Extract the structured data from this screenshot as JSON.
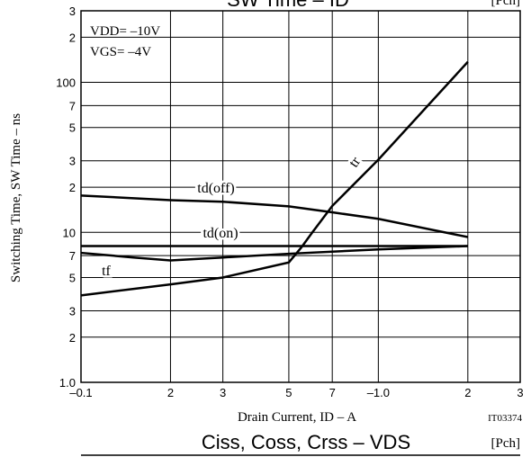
{
  "chart_data": {
    "type": "line",
    "title": "SW Time – ID",
    "title_note": "[Pch]",
    "xlabel": "Drain Current, ID – A",
    "ylabel": "Switching Time, SW Time – ns",
    "figure_id": "IT03374",
    "annotations": [
      "VDD= –10V",
      "VGS= –4V"
    ],
    "next_title": "Ciss, Coss, Crss – VDS",
    "next_title_note": "[Pch]",
    "xscale": "log",
    "yscale": "log",
    "grid": true,
    "xlim": [
      0.1,
      3
    ],
    "ylim": [
      1,
      300
    ],
    "xticks": [
      {
        "value": 0.1,
        "label": "–0.1"
      },
      {
        "value": 0.2,
        "label": "2"
      },
      {
        "value": 0.3,
        "label": "3"
      },
      {
        "value": 0.5,
        "label": "5"
      },
      {
        "value": 0.7,
        "label": "7"
      },
      {
        "value": 1.0,
        "label": "–1.0"
      },
      2,
      3
    ],
    "yticks": [
      {
        "value": 1,
        "label": "1.0"
      },
      2,
      3,
      5,
      7,
      10,
      {
        "value": 20,
        "label": "2"
      },
      {
        "value": 30,
        "label": "3"
      },
      {
        "value": 50,
        "label": "5"
      },
      {
        "value": 70,
        "label": "7"
      },
      100,
      {
        "value": 200,
        "label": "2"
      },
      {
        "value": 300,
        "label": "3"
      }
    ],
    "series": [
      {
        "name": "tr",
        "color": "#000000",
        "x": [
          0.1,
          0.2,
          0.3,
          0.5,
          0.55,
          0.6,
          0.7,
          1.0,
          2.0
        ],
        "values": [
          3.8,
          4.5,
          5.0,
          6.3,
          7.9,
          10,
          15,
          30.5,
          137
        ]
      },
      {
        "name": "td(off)",
        "color": "#000000",
        "x": [
          0.1,
          0.2,
          0.3,
          0.5,
          0.7,
          1.0,
          2.0
        ],
        "values": [
          17.6,
          16.4,
          16,
          14.9,
          13.6,
          12.3,
          9.3
        ]
      },
      {
        "name": "td(on)",
        "color": "#000000",
        "x": [
          0.1,
          2.0
        ],
        "values": [
          8.1,
          8.1
        ]
      },
      {
        "name": "tf",
        "color": "#000000",
        "x": [
          0.1,
          0.15,
          0.2,
          0.3,
          0.5,
          1.0,
          2.0
        ],
        "values": [
          7.3,
          6.8,
          6.5,
          6.8,
          7.2,
          7.7,
          8.1
        ]
      }
    ]
  }
}
